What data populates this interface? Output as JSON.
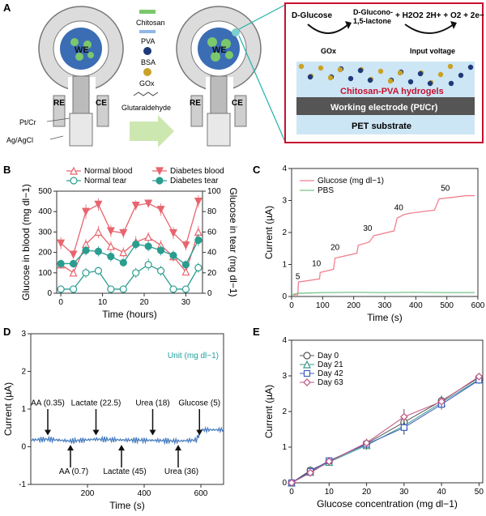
{
  "panel_a": {
    "letter": "A",
    "electrode_labels": {
      "we": "WE",
      "re": "RE",
      "ce": "CE",
      "ptcr": "Pt/Cr",
      "agcl": "Ag/AgCl"
    },
    "legend": {
      "chitosan": "Chitosan",
      "pva": "PVA",
      "bsa": "BSA",
      "gox": "GOx",
      "glut": "Glutaraldehyde"
    },
    "inset": {
      "glucose": "D-Glucose",
      "gluconolactone_1": "D-Glucono-",
      "gluconolactone_2": "1,5-lactone",
      "h2o2": "+ H2O2",
      "reaction2": "2H+ + O2 + 2e−",
      "gox": "GOx",
      "input_voltage": "Input voltage",
      "hydrogel": "Chitosan-PVA hydrogels",
      "working_electrode": "Working electrode (Pt/Cr)",
      "substrate": "PET substrate"
    },
    "colors": {
      "hydrogel_text": "#c8102e",
      "frame": "#c8102e",
      "teal_line": "#20b2aa"
    }
  },
  "chart_data": [
    {
      "panel": "B",
      "type": "line",
      "xlabel": "Time (hours)",
      "ylabel": "Glucose in blood (mg dl−1)",
      "ylabel_right": "Glucose in tear (mg dl−1)",
      "xlim": [
        -1,
        34
      ],
      "ylim": [
        0,
        500
      ],
      "ylim_right": [
        0,
        100
      ],
      "xticks": [
        0,
        10,
        20,
        30
      ],
      "yticks": [
        0,
        100,
        200,
        300,
        400,
        500
      ],
      "yticks_right": [
        0,
        20,
        40,
        60,
        80,
        100
      ],
      "x": [
        0,
        3,
        6,
        9,
        12,
        15,
        18,
        21,
        24,
        27,
        30,
        33
      ],
      "series": [
        {
          "name": "Normal blood",
          "axis": "left",
          "marker": "triangle-up-open",
          "color": "#e8646e",
          "values": [
            140,
            100,
            240,
            300,
            230,
            200,
            250,
            275,
            235,
            180,
            105,
            300
          ],
          "errors": [
            15,
            10,
            25,
            30,
            25,
            25,
            30,
            25,
            25,
            25,
            15,
            30
          ]
        },
        {
          "name": "Diabetes blood",
          "axis": "left",
          "marker": "triangle-down-filled",
          "color": "#e8646e",
          "values": [
            245,
            190,
            400,
            435,
            305,
            295,
            430,
            440,
            410,
            295,
            235,
            450
          ],
          "errors": [
            30,
            20,
            35,
            30,
            30,
            25,
            25,
            20,
            30,
            30,
            25,
            30
          ]
        },
        {
          "name": "Normal tear",
          "axis": "right",
          "marker": "circle-open",
          "color": "#2a9d8f",
          "values": [
            4,
            4,
            20,
            22,
            4,
            4,
            20,
            28,
            22,
            4,
            4,
            25
          ],
          "errors": [
            2,
            2,
            5,
            4,
            2,
            2,
            5,
            6,
            5,
            2,
            2,
            5
          ]
        },
        {
          "name": "Diabetes tear",
          "axis": "right",
          "marker": "circle-filled",
          "color": "#2a9d8f",
          "values": [
            29,
            29,
            42,
            41,
            36,
            30,
            48,
            46,
            42,
            37,
            28,
            52
          ],
          "errors": [
            4,
            4,
            5,
            5,
            5,
            4,
            5,
            5,
            5,
            5,
            4,
            6
          ]
        }
      ]
    },
    {
      "panel": "C",
      "type": "line",
      "xlabel": "Time (s)",
      "ylabel": "Current (µA)",
      "xlim": [
        0,
        600
      ],
      "ylim": [
        0,
        4
      ],
      "xticks": [
        0,
        100,
        200,
        300,
        400,
        500,
        600
      ],
      "yticks": [
        0,
        1,
        2,
        3,
        4
      ],
      "series": [
        {
          "name": "Glucose (mg dl−1)",
          "color": "#f08090",
          "x": [
            0,
            20,
            22,
            90,
            92,
            135,
            140,
            210,
            215,
            250,
            265,
            330,
            340,
            360,
            380,
            460,
            475,
            520,
            560,
            590
          ],
          "values": [
            0.05,
            0.05,
            0.45,
            0.55,
            0.75,
            0.85,
            1.2,
            1.35,
            1.6,
            1.7,
            1.9,
            2.05,
            2.45,
            2.55,
            2.6,
            2.7,
            3.05,
            3.1,
            3.15,
            3.15
          ]
        },
        {
          "name": "PBS",
          "color": "#7ac48a",
          "x": [
            0,
            20,
            100,
            200,
            300,
            400,
            500,
            590
          ],
          "values": [
            0.05,
            0.1,
            0.12,
            0.13,
            0.12,
            0.13,
            0.12,
            0.12
          ]
        }
      ],
      "annotations": [
        {
          "text": "5",
          "x": 20,
          "y": 0.55
        },
        {
          "text": "10",
          "x": 80,
          "y": 0.95
        },
        {
          "text": "20",
          "x": 140,
          "y": 1.45
        },
        {
          "text": "30",
          "x": 245,
          "y": 2.05
        },
        {
          "text": "40",
          "x": 345,
          "y": 2.7
        },
        {
          "text": "50",
          "x": 495,
          "y": 3.3
        }
      ]
    },
    {
      "panel": "D",
      "type": "line",
      "xlabel": "Time (s)",
      "ylabel": "Current (µA)",
      "unit_note": "Unit (mg dl−1)",
      "xlim": [
        0,
        680
      ],
      "ylim": [
        -1,
        3
      ],
      "xticks": [
        200,
        400,
        600
      ],
      "yticks": [
        -1,
        0,
        1,
        2,
        3
      ],
      "series": [
        {
          "name": "Current",
          "color": "#4a7fc1",
          "x": [
            0,
            60,
            140,
            230,
            320,
            430,
            520,
            585,
            600,
            680
          ],
          "values": [
            0.18,
            0.2,
            0.15,
            0.2,
            0.18,
            0.17,
            0.15,
            0.18,
            0.45,
            0.45
          ]
        }
      ],
      "annotations_down": [
        {
          "text": "AA (0.35)",
          "x": 60
        },
        {
          "text": "Lactate (22.5)",
          "x": 230
        },
        {
          "text": "Urea (18)",
          "x": 430
        },
        {
          "text": "Glucose (5)",
          "x": 595
        }
      ],
      "annotations_up": [
        {
          "text": "AA (0.7)",
          "x": 140
        },
        {
          "text": "Lactate (45)",
          "x": 320
        },
        {
          "text": "Urea (36)",
          "x": 520
        }
      ]
    },
    {
      "panel": "E",
      "type": "scatter",
      "xlabel": "Glucose concentration (mg dl−1)",
      "ylabel": "Current (µA)",
      "xlim": [
        0,
        51
      ],
      "ylim": [
        0,
        4
      ],
      "xticks": [
        0,
        10,
        20,
        30,
        40,
        50
      ],
      "yticks": [
        0,
        1,
        2,
        3,
        4
      ],
      "x": [
        0,
        5,
        10,
        20,
        30,
        40,
        50
      ],
      "series": [
        {
          "name": "Day 0",
          "marker": "circle-open",
          "color": "#555555",
          "values": [
            0.0,
            0.35,
            0.6,
            1.1,
            1.7,
            2.3,
            2.95
          ],
          "errors": [
            0.02,
            0.08,
            0.1,
            0.12,
            0.2,
            0.15,
            0.1
          ]
        },
        {
          "name": "Day 21",
          "marker": "triangle-open",
          "color": "#3a9a8a",
          "values": [
            0.0,
            0.3,
            0.58,
            1.05,
            1.6,
            2.25,
            2.9
          ],
          "errors": [
            0.02,
            0.08,
            0.1,
            0.12,
            0.25,
            0.15,
            0.1
          ]
        },
        {
          "name": "Day 42",
          "marker": "square-open",
          "color": "#3a5fc0",
          "values": [
            0.0,
            0.32,
            0.62,
            1.08,
            1.55,
            2.2,
            2.88
          ],
          "errors": [
            0.02,
            0.08,
            0.1,
            0.12,
            0.2,
            0.15,
            0.1
          ]
        },
        {
          "name": "Day 63",
          "marker": "diamond-open",
          "color": "#c05080",
          "values": [
            0.0,
            0.28,
            0.6,
            1.12,
            1.85,
            2.28,
            2.98
          ],
          "errors": [
            0.02,
            0.08,
            0.1,
            0.12,
            0.22,
            0.15,
            0.1
          ]
        }
      ]
    }
  ]
}
